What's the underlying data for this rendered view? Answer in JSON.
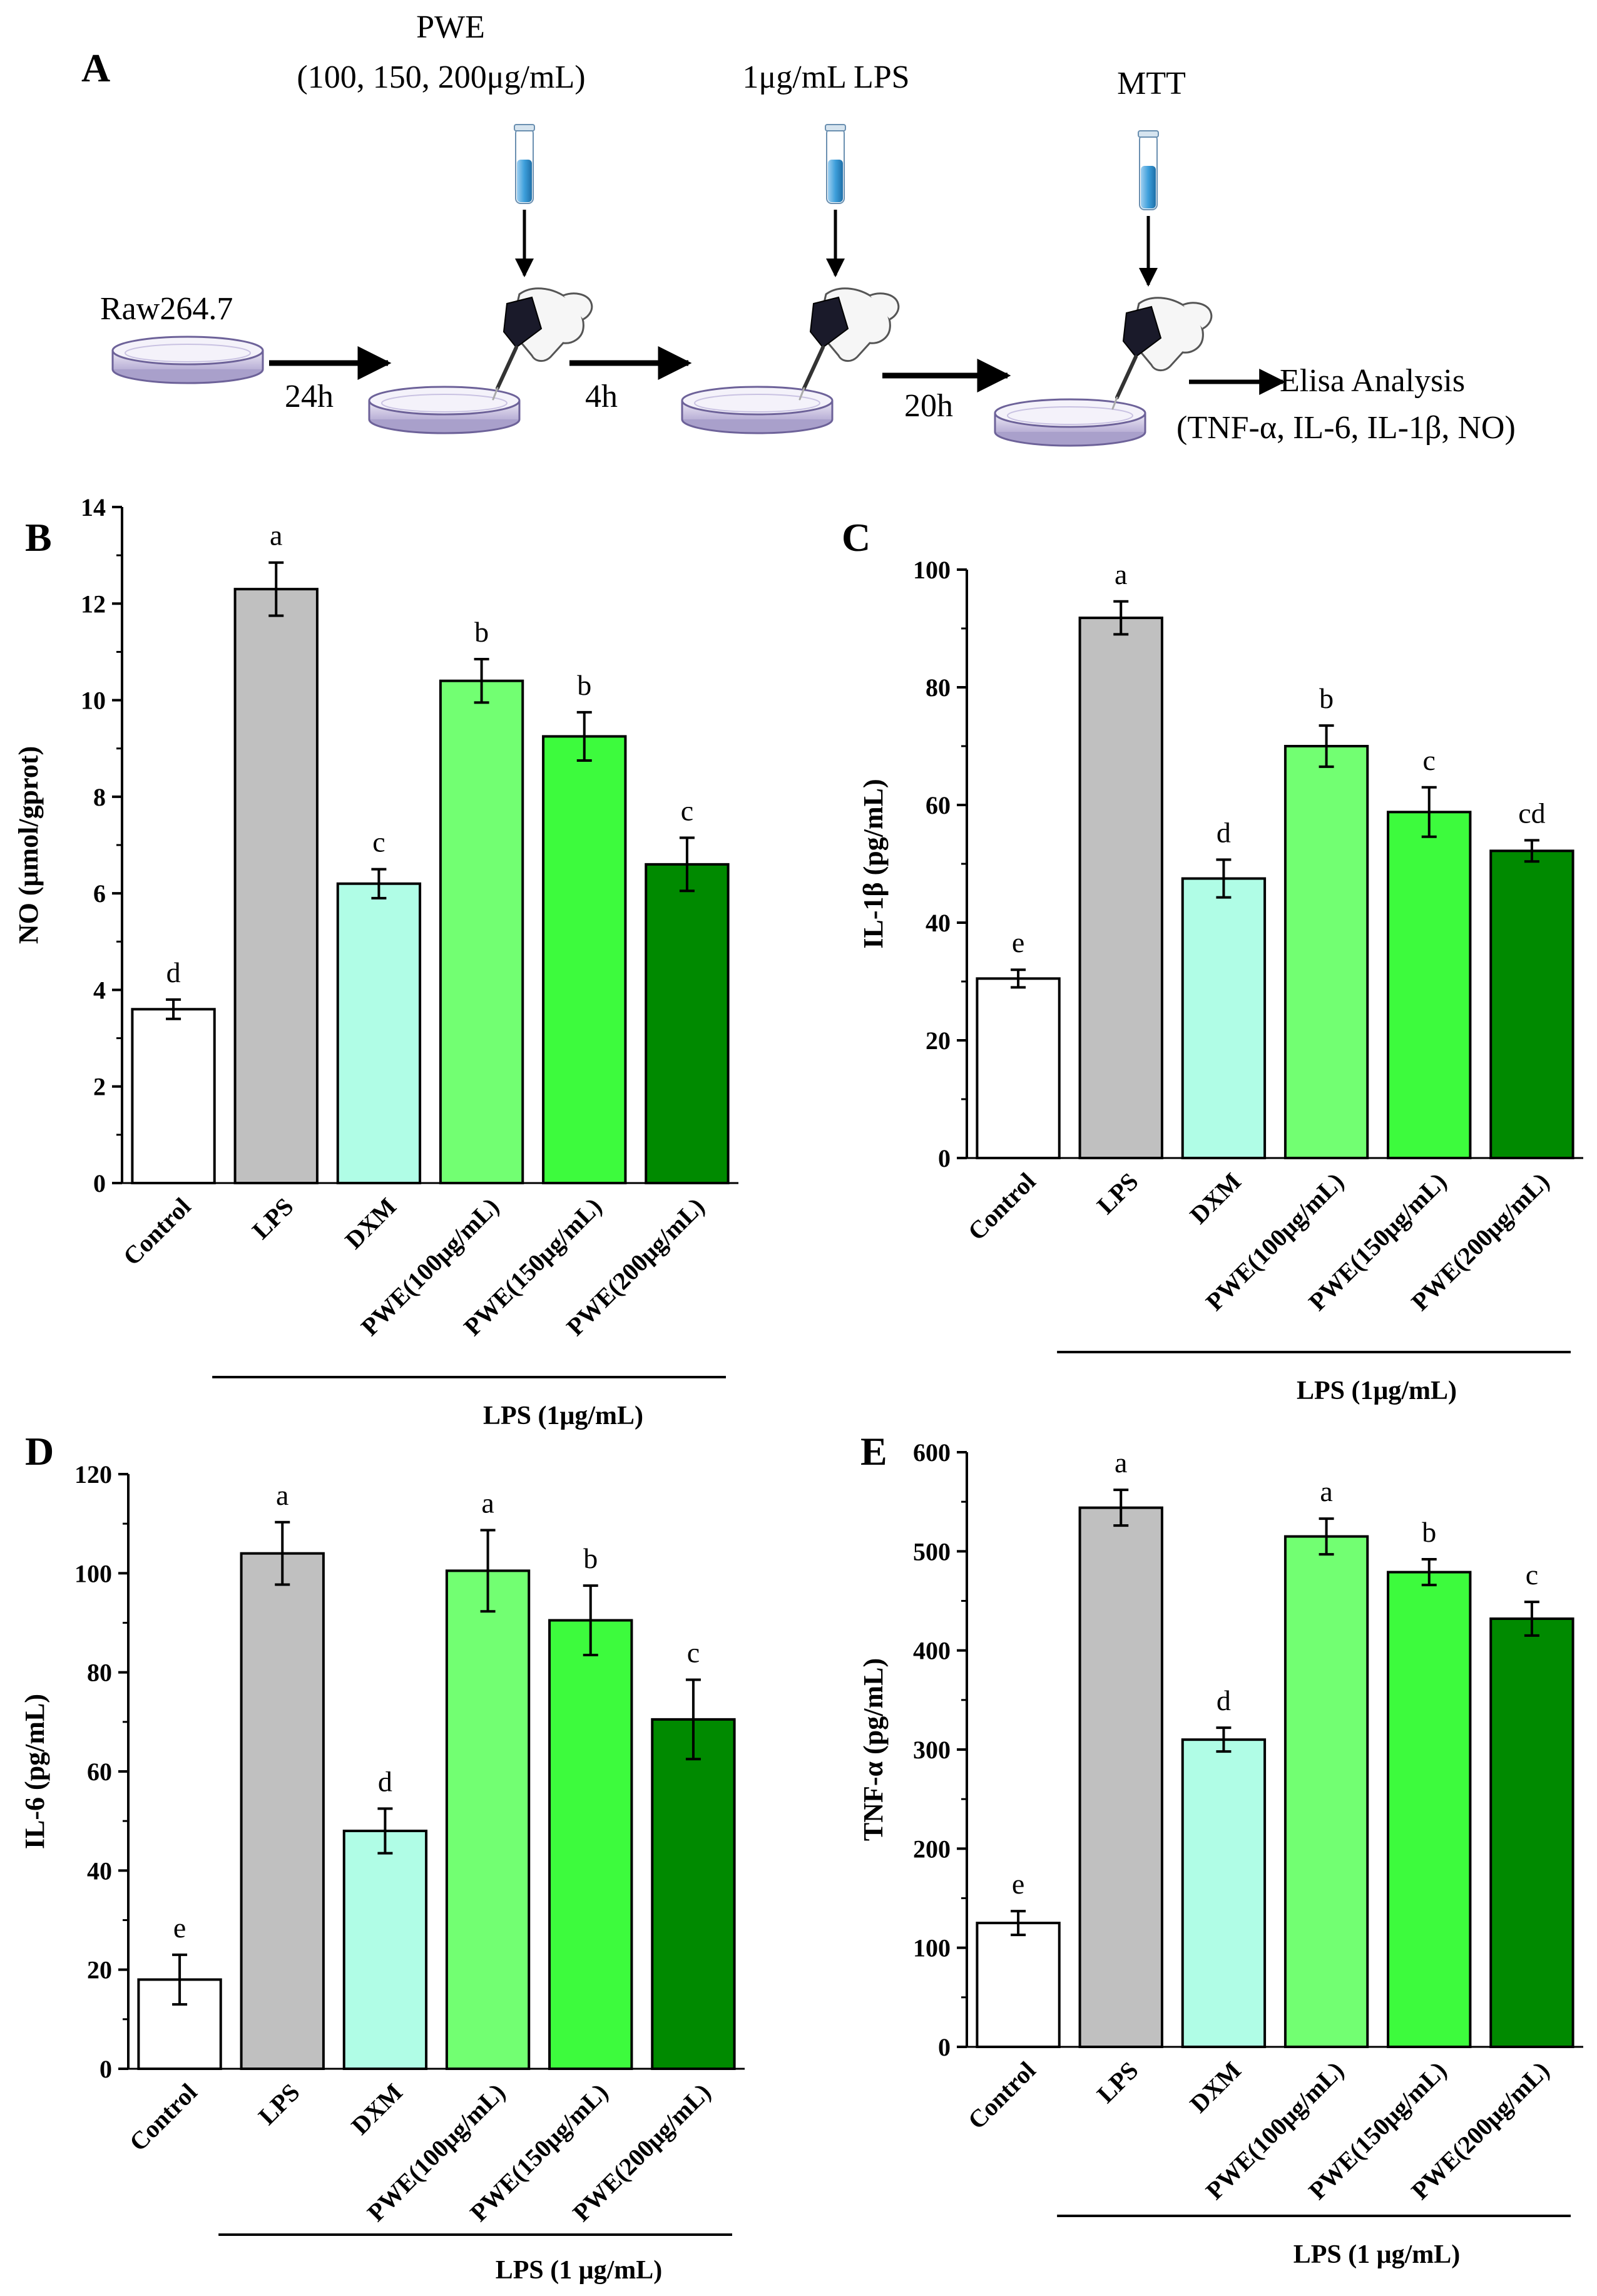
{
  "schematic": {
    "panel": "A",
    "cell_line": "Raw264.7",
    "steps": [
      {
        "time": "24h",
        "reagent": "PWE",
        "reagent_detail": "(100, 150, 200μg/mL)"
      },
      {
        "time": "4h",
        "reagent": "1μg/mL LPS",
        "reagent_detail": ""
      },
      {
        "time": "20h",
        "reagent": "MTT",
        "reagent_detail": ""
      }
    ],
    "final_step": "Elisa Analysis",
    "final_detail": "(TNF-α, IL-6, IL-1β, NO)"
  },
  "chart_data": [
    {
      "panel": "B",
      "type": "bar",
      "ylabel": "NO (μmol/gprot)",
      "ylim": [
        0,
        14
      ],
      "yticks": [
        0,
        2,
        4,
        6,
        8,
        10,
        12,
        14
      ],
      "categories": [
        "Control",
        "LPS",
        "DXM",
        "PWE(100μg/mL)",
        "PWE(150μg/mL)",
        "PWE(200μg/mL)"
      ],
      "values": [
        3.6,
        12.3,
        6.2,
        10.4,
        9.25,
        6.6
      ],
      "errors": [
        0.2,
        0.55,
        0.3,
        0.45,
        0.5,
        0.55
      ],
      "significance": [
        "d",
        "a",
        "c",
        "b",
        "b",
        "c"
      ],
      "group_label": "LPS (1μg/mL)",
      "group_span": [
        1,
        5
      ]
    },
    {
      "panel": "C",
      "type": "bar",
      "ylabel": "IL-1β (pg/mL)",
      "ylim": [
        0,
        100
      ],
      "yticks": [
        0,
        20,
        40,
        60,
        80,
        100
      ],
      "categories": [
        "Control",
        "LPS",
        "DXM",
        "PWE(100μg/mL)",
        "PWE(150μg/mL)",
        "PWE(200μg/mL)"
      ],
      "values": [
        30.5,
        91.8,
        47.5,
        70,
        58.8,
        52.2
      ],
      "errors": [
        1.5,
        2.8,
        3.2,
        3.5,
        4.2,
        1.8
      ],
      "significance": [
        "e",
        "a",
        "d",
        "b",
        "c",
        "cd"
      ],
      "group_label": "LPS (1μg/mL)",
      "group_span": [
        1,
        5
      ]
    },
    {
      "panel": "D",
      "type": "bar",
      "ylabel": "IL-6 (pg/mL)",
      "ylim": [
        0,
        120
      ],
      "yticks": [
        0,
        20,
        40,
        60,
        80,
        100,
        120
      ],
      "categories": [
        "Control",
        "LPS",
        "DXM",
        "PWE(100μg/mL)",
        "PWE(150μg/mL)",
        "PWE(200μg/mL)"
      ],
      "values": [
        18,
        104,
        48,
        100.5,
        90.5,
        70.5
      ],
      "errors": [
        5,
        6.3,
        4.5,
        8.2,
        7,
        8
      ],
      "significance": [
        "e",
        "a",
        "d",
        "a",
        "b",
        "c"
      ],
      "group_label": "LPS (1 μg/mL)",
      "group_span": [
        1,
        5
      ]
    },
    {
      "panel": "E",
      "type": "bar",
      "ylabel": "TNF-α (pg/mL)",
      "ylim": [
        0,
        600
      ],
      "yticks": [
        0,
        100,
        200,
        300,
        400,
        500,
        600
      ],
      "categories": [
        "Control",
        "LPS",
        "DXM",
        "PWE(100μg/mL)",
        "PWE(150μg/mL)",
        "PWE(200μg/mL)"
      ],
      "values": [
        125,
        544,
        310,
        515,
        479,
        432
      ],
      "errors": [
        12,
        18,
        12,
        18,
        13,
        17
      ],
      "significance": [
        "e",
        "a",
        "d",
        "a",
        "b",
        "c"
      ],
      "group_label": "LPS (1 μg/mL)",
      "group_span": [
        1,
        5
      ]
    }
  ],
  "colors": {
    "bars": [
      "#ffffff",
      "#c0c0c0",
      "#b0fde6",
      "#72ff72",
      "#3dfb3d",
      "#008a00"
    ],
    "stroke": "#000000",
    "tube_liquid": "#3d9fdb"
  }
}
